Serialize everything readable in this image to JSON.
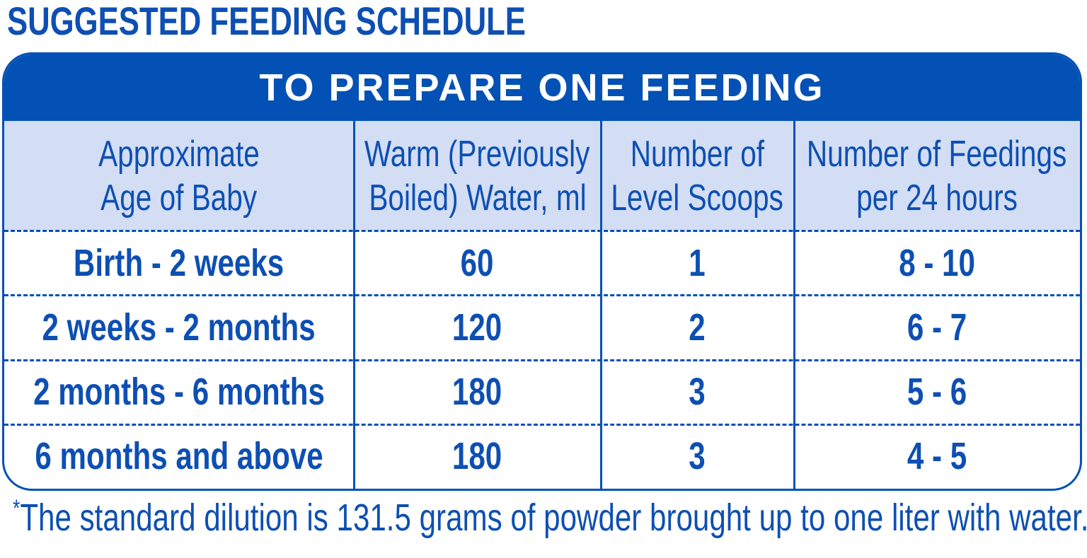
{
  "header": {
    "title": "SUGGESTED FEEDING SCHEDULE"
  },
  "table": {
    "caption": "TO PREPARE ONE FEEDING",
    "headers": [
      [
        "Approximate",
        "Age of Baby"
      ],
      [
        "Warm (Previously",
        "Boiled) Water, ml"
      ],
      [
        "Number of",
        "Level Scoops"
      ],
      [
        "Number of Feedings",
        "per 24 hours"
      ]
    ],
    "rows": [
      [
        "Birth - 2 weeks",
        "60",
        "1",
        "8 - 10"
      ],
      [
        "2 weeks - 2 months",
        "120",
        "2",
        "6 - 7"
      ],
      [
        "2 months - 6 months",
        "180",
        "3",
        "5 - 6"
      ],
      [
        "6 months and above",
        "180",
        "3",
        "4 - 5"
      ]
    ]
  },
  "footnote": {
    "marker": "*",
    "text": "The standard dilution is 131.5 grams of powder brought up to one liter with water."
  }
}
